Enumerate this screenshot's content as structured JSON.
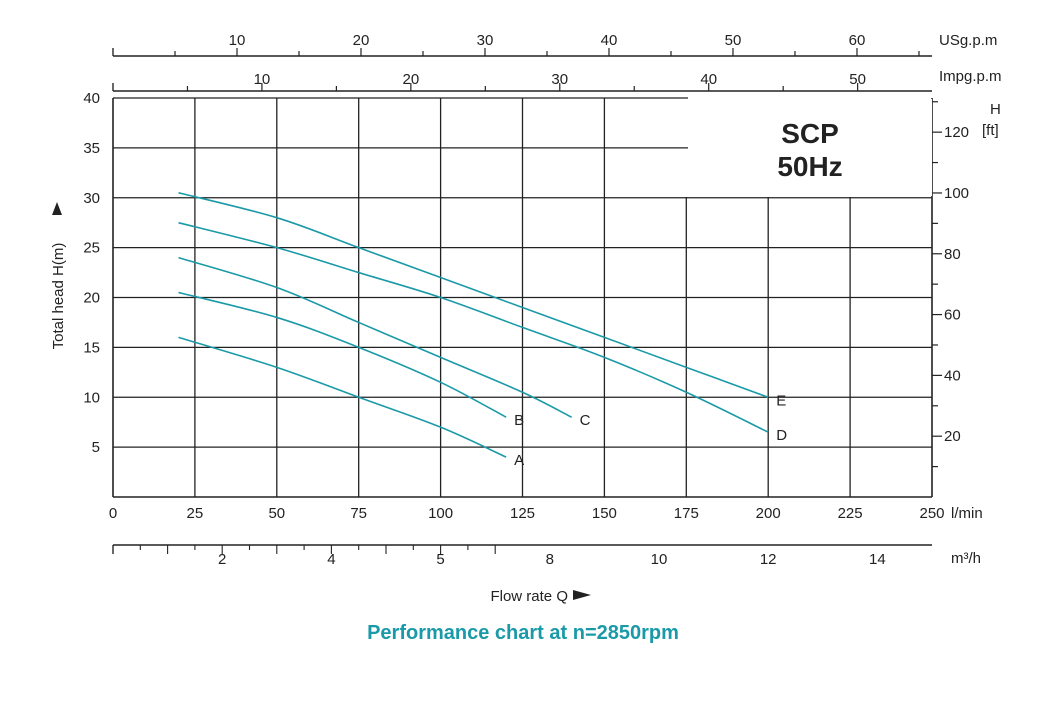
{
  "colors": {
    "curve": "#1a9aa8",
    "grid": "#222222",
    "title": "#1a9aa8"
  },
  "chart_data": {
    "type": "line",
    "title": "Performance chart at n=2850rpm",
    "model": "SCP",
    "frequency": "50Hz",
    "xlabel": "Flow rate Q",
    "ylabel": "Total head H(m)",
    "xlim": [
      0,
      250
    ],
    "ylim": [
      0,
      40
    ],
    "x_unit": "l/min",
    "x_ticks": [
      0,
      25,
      50,
      75,
      100,
      125,
      150,
      175,
      200,
      225,
      250
    ],
    "y_ticks": [
      5,
      10,
      15,
      20,
      25,
      30,
      35,
      40
    ],
    "grid": true,
    "secondary_axes": {
      "usgpm": {
        "unit": "USg.p.m",
        "ticks": [
          10,
          20,
          30,
          40,
          50,
          60
        ]
      },
      "impgpm": {
        "unit": "Impg.p.m",
        "ticks": [
          10,
          20,
          30,
          40,
          50
        ]
      },
      "m3h": {
        "unit": "m³/h",
        "ticks": [
          2,
          4,
          5,
          8,
          10,
          12,
          14
        ]
      },
      "head_ft": {
        "unit_top": "H",
        "unit_bottom": "[ft]",
        "ticks": [
          20,
          40,
          60,
          80,
          100,
          120
        ]
      }
    },
    "series": [
      {
        "name": "A",
        "x": [
          20,
          50,
          75,
          100,
          120
        ],
        "y": [
          16,
          13,
          10,
          7,
          4
        ]
      },
      {
        "name": "B",
        "x": [
          20,
          50,
          75,
          100,
          120
        ],
        "y": [
          20.5,
          18,
          15,
          11.5,
          8
        ]
      },
      {
        "name": "C",
        "x": [
          20,
          50,
          75,
          100,
          125,
          140
        ],
        "y": [
          24,
          21,
          17.5,
          14,
          10.5,
          8
        ]
      },
      {
        "name": "D",
        "x": [
          20,
          50,
          75,
          100,
          125,
          150,
          175,
          200
        ],
        "y": [
          27.5,
          25,
          22.5,
          20,
          17,
          14,
          10.5,
          6.5
        ]
      },
      {
        "name": "E",
        "x": [
          20,
          50,
          75,
          100,
          125,
          150,
          175,
          200
        ],
        "y": [
          30.5,
          28,
          25,
          22,
          19,
          16,
          13,
          10
        ]
      }
    ]
  }
}
